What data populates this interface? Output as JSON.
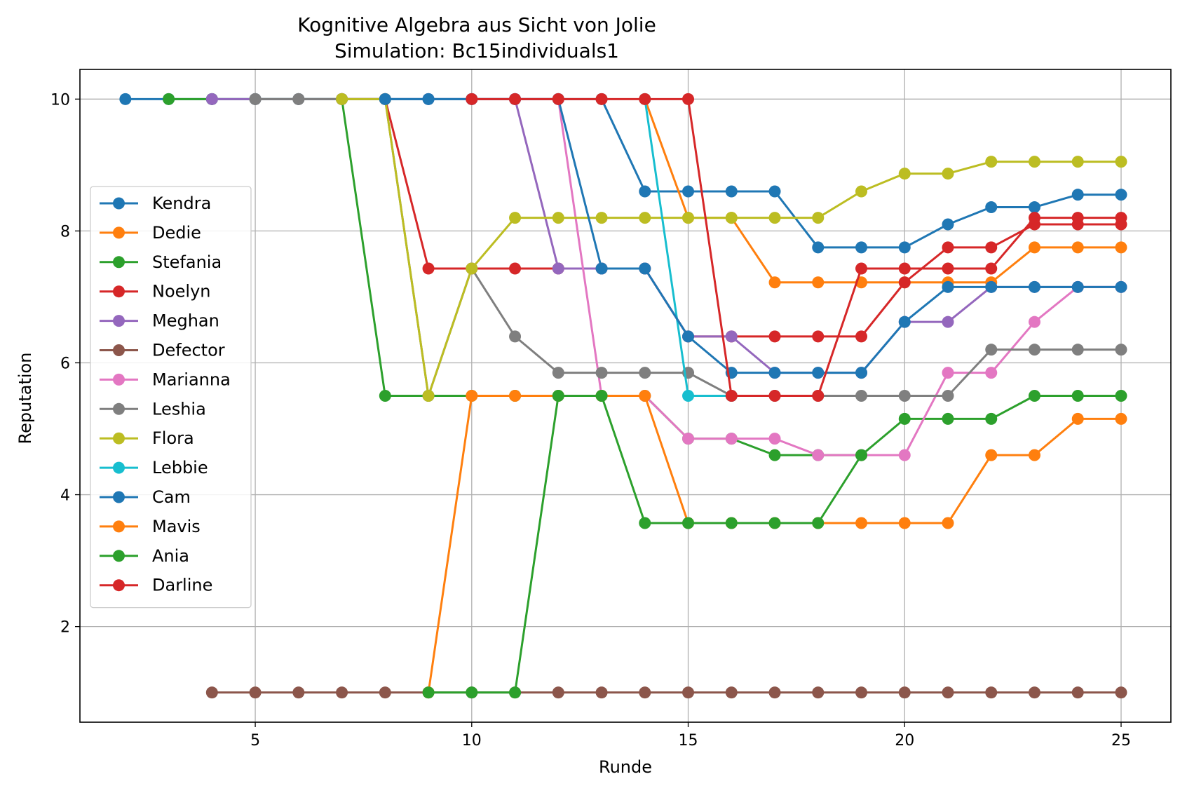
{
  "chart_data": {
    "type": "line",
    "title": "Kognitive Algebra aus Sicht von Jolie",
    "subtitle": "Simulation: Bc15individuals1",
    "xlabel": "Runde",
    "ylabel": "Reputation",
    "xlim": [
      0.95,
      26.15
    ],
    "ylim": [
      0.55,
      10.45
    ],
    "xticks": [
      5,
      10,
      15,
      20,
      25
    ],
    "yticks": [
      2,
      4,
      6,
      8,
      10
    ],
    "grid": true,
    "legend_position": "center-left",
    "series": [
      {
        "name": "Kendra",
        "color": "#1f77b4",
        "x": [
          2,
          3,
          4,
          5,
          6,
          7,
          8,
          9,
          10,
          11,
          12,
          13,
          14,
          15,
          16,
          17,
          18,
          19,
          20,
          21,
          22,
          23,
          24,
          25
        ],
        "y": [
          10,
          10,
          10,
          10,
          10,
          10,
          10,
          10,
          10,
          10,
          10,
          10,
          8.6,
          8.6,
          8.6,
          8.6,
          7.75,
          7.75,
          7.75,
          8.1,
          8.36,
          8.36,
          8.55,
          8.55
        ]
      },
      {
        "name": "Dedie",
        "color": "#ff7f0e",
        "x": [
          14,
          15,
          16,
          17,
          18,
          19,
          20,
          21,
          22,
          23,
          24,
          25
        ],
        "y": [
          10,
          8.2,
          8.2,
          7.22,
          7.22,
          7.22,
          7.22,
          7.22,
          7.22,
          7.75,
          7.75,
          7.75
        ]
      },
      {
        "name": "Stefania",
        "color": "#2ca02c",
        "x": [
          3,
          4,
          5,
          6,
          7,
          8,
          9,
          10,
          11,
          12,
          13,
          14,
          15,
          16,
          17,
          18,
          19,
          20,
          21,
          22,
          23,
          24,
          25
        ],
        "y": [
          10,
          10,
          10,
          10,
          10,
          5.5,
          5.5,
          5.5,
          5.5,
          5.5,
          5.5,
          5.5,
          4.85,
          4.85,
          4.6,
          4.6,
          4.6,
          5.15,
          5.15,
          5.15,
          5.5,
          5.5,
          5.5
        ]
      },
      {
        "name": "Noelyn",
        "color": "#d62728",
        "x": [
          7,
          8,
          9,
          10,
          11,
          12,
          13,
          14,
          15,
          16,
          17,
          18,
          19,
          20,
          21,
          22,
          23,
          24,
          25
        ],
        "y": [
          10,
          10,
          7.43,
          7.43,
          7.43,
          7.43,
          7.43,
          7.43,
          6.4,
          6.4,
          6.4,
          6.4,
          6.4,
          7.22,
          7.75,
          7.75,
          8.1,
          8.1,
          8.1
        ]
      },
      {
        "name": "Meghan",
        "color": "#9467bd",
        "x": [
          4,
          5,
          6,
          7,
          8,
          9,
          10,
          11,
          12,
          13,
          14,
          15,
          16,
          17,
          18,
          19,
          20,
          21,
          22,
          23,
          24,
          25
        ],
        "y": [
          10,
          10,
          10,
          10,
          10,
          10,
          10,
          10,
          7.43,
          7.43,
          7.43,
          6.4,
          6.4,
          5.85,
          5.85,
          5.85,
          6.62,
          6.62,
          7.15,
          7.15,
          7.15,
          7.15
        ]
      },
      {
        "name": "Defector",
        "color": "#8c564b",
        "x": [
          4,
          5,
          6,
          7,
          8,
          9,
          10,
          11,
          12,
          13,
          14,
          15,
          16,
          17,
          18,
          19,
          20,
          21,
          22,
          23,
          24,
          25
        ],
        "y": [
          1,
          1,
          1,
          1,
          1,
          1,
          1,
          1,
          1,
          1,
          1,
          1,
          1,
          1,
          1,
          1,
          1,
          1,
          1,
          1,
          1,
          1
        ]
      },
      {
        "name": "Marianna",
        "color": "#e377c2",
        "x": [
          11,
          12,
          13,
          14,
          15,
          16,
          17,
          18,
          19,
          20,
          21,
          22,
          23,
          24,
          25
        ],
        "y": [
          10,
          10,
          5.5,
          5.5,
          4.85,
          4.85,
          4.85,
          4.6,
          4.6,
          4.6,
          5.85,
          5.85,
          6.62,
          7.15,
          7.15
        ]
      },
      {
        "name": "Leshia",
        "color": "#7f7f7f",
        "x": [
          5,
          6,
          7,
          8,
          9,
          10,
          11,
          12,
          13,
          14,
          15,
          16,
          17,
          18,
          19,
          20,
          21,
          22,
          23,
          24,
          25
        ],
        "y": [
          10,
          10,
          10,
          10,
          5.5,
          7.43,
          6.4,
          5.85,
          5.85,
          5.85,
          5.85,
          5.5,
          5.5,
          5.5,
          5.5,
          5.5,
          5.5,
          6.2,
          6.2,
          6.2,
          6.2
        ]
      },
      {
        "name": "Flora",
        "color": "#bcbd22",
        "x": [
          7,
          8,
          9,
          10,
          11,
          12,
          13,
          14,
          15,
          16,
          17,
          18,
          19,
          20,
          21,
          22,
          23,
          24,
          25
        ],
        "y": [
          10,
          10,
          5.5,
          7.43,
          8.2,
          8.2,
          8.2,
          8.2,
          8.2,
          8.2,
          8.2,
          8.2,
          8.6,
          8.87,
          8.87,
          9.05,
          9.05,
          9.05,
          9.05
        ]
      },
      {
        "name": "Lebbie",
        "color": "#17becf",
        "x": [
          14,
          15,
          16
        ],
        "y": [
          10,
          5.5,
          5.5
        ]
      },
      {
        "name": "Cam",
        "color": "#1f77b4",
        "x": [
          8,
          9,
          10,
          11,
          12,
          13,
          14,
          15,
          16,
          17,
          18,
          19,
          20,
          21,
          22,
          23,
          24,
          25
        ],
        "y": [
          10,
          10,
          10,
          10,
          10,
          7.43,
          7.43,
          6.4,
          5.85,
          5.85,
          5.85,
          5.85,
          6.62,
          7.15,
          7.15,
          7.15,
          7.15,
          7.15
        ]
      },
      {
        "name": "Mavis",
        "color": "#ff7f0e",
        "x": [
          9,
          10,
          11,
          12,
          13,
          14,
          15,
          16,
          17,
          18,
          19,
          20,
          21,
          22,
          23,
          24,
          25
        ],
        "y": [
          1,
          5.5,
          5.5,
          5.5,
          5.5,
          5.5,
          3.57,
          3.57,
          3.57,
          3.57,
          3.57,
          3.57,
          3.57,
          4.6,
          4.6,
          5.15,
          5.15
        ]
      },
      {
        "name": "Ania",
        "color": "#2ca02c",
        "x": [
          9,
          10,
          11,
          12,
          13,
          14,
          15,
          16,
          17,
          18,
          19
        ],
        "y": [
          1,
          1,
          1,
          5.5,
          5.5,
          3.57,
          3.57,
          3.57,
          3.57,
          3.57,
          4.6
        ]
      },
      {
        "name": "Darline",
        "color": "#d62728",
        "x": [
          10,
          11,
          12,
          13,
          14,
          15,
          16,
          17,
          18,
          19,
          20,
          21,
          22,
          23,
          24,
          25
        ],
        "y": [
          10,
          10,
          10,
          10,
          10,
          10,
          5.5,
          5.5,
          5.5,
          7.43,
          7.43,
          7.43,
          7.43,
          8.2,
          8.2,
          8.2
        ]
      }
    ]
  }
}
